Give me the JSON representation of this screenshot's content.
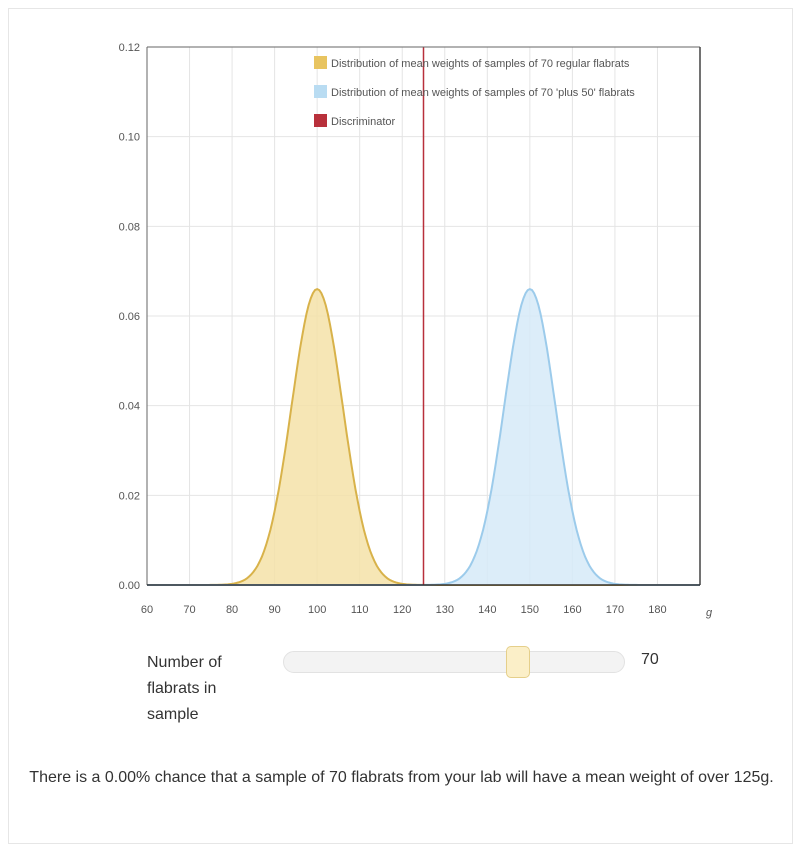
{
  "chart_data": {
    "type": "area",
    "x_axis": {
      "range": [
        60,
        190
      ],
      "ticks": [
        60,
        70,
        80,
        90,
        100,
        110,
        120,
        130,
        140,
        150,
        160,
        170,
        180
      ],
      "unit_label": "g"
    },
    "y_axis": {
      "range": [
        0,
        0.12
      ],
      "ticks": [
        0,
        0.02,
        0.04,
        0.06,
        0.08,
        0.1,
        0.12
      ],
      "tick_labels": [
        "0.00",
        "0.02",
        "0.04",
        "0.06",
        "0.08",
        "0.10",
        "0.12"
      ]
    },
    "grid": true,
    "legend": {
      "placement": "top-right",
      "entries": [
        {
          "label": "Distribution of mean weights of samples of 70 regular flabrats",
          "color": "#e8c460"
        },
        {
          "label": "Distribution of mean weights of samples of 70 'plus 50' flabrats",
          "color": "#b9dcf2"
        },
        {
          "label": "Discriminator",
          "color": "#b8303b"
        }
      ]
    },
    "series": [
      {
        "name": "Distribution of mean weights of samples of 70 regular flabrats",
        "distribution": "normal",
        "mean": 100,
        "sd": 6,
        "peak": 0.066,
        "stroke": "#d8b24a",
        "fill": "#f5e2a8"
      },
      {
        "name": "Distribution of mean weights of samples of 70 'plus 50' flabrats",
        "distribution": "normal",
        "mean": 150,
        "sd": 6,
        "peak": 0.066,
        "stroke": "#9ccbeb",
        "fill": "#d6eaf8"
      }
    ],
    "discriminator": {
      "name": "Discriminator",
      "x": 125,
      "color": "#b8303b"
    }
  },
  "slider": {
    "label": "Number of\nflabrats in\nsample",
    "min": 0,
    "max": 100,
    "value": 70,
    "value_text": "70"
  },
  "result_text": "There is a 0.00% chance that a sample of 70 flabrats from your lab will have a mean weight of over 125g."
}
